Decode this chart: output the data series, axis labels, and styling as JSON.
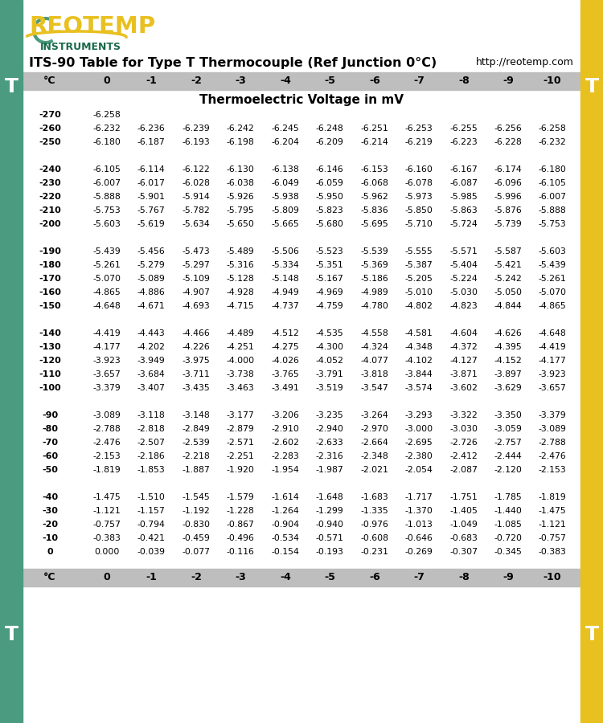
{
  "title": "ITS-90 Table for Type T Thermocouple (Ref Junction 0°C)",
  "url": "http://reotemp.com",
  "subtitle": "Thermoelectric Voltage in mV",
  "header": [
    "°C",
    "0",
    "-1",
    "-2",
    "-3",
    "-4",
    "-5",
    "-6",
    "-7",
    "-8",
    "-9",
    "-10"
  ],
  "rows": [
    [
      "-270",
      "-6.258",
      "",
      "",
      "",
      "",
      "",
      "",
      "",
      "",
      "",
      ""
    ],
    [
      "-260",
      "-6.232",
      "-6.236",
      "-6.239",
      "-6.242",
      "-6.245",
      "-6.248",
      "-6.251",
      "-6.253",
      "-6.255",
      "-6.256",
      "-6.258"
    ],
    [
      "-250",
      "-6.180",
      "-6.187",
      "-6.193",
      "-6.198",
      "-6.204",
      "-6.209",
      "-6.214",
      "-6.219",
      "-6.223",
      "-6.228",
      "-6.232"
    ],
    [
      "",
      "",
      "",
      "",
      "",
      "",
      "",
      "",
      "",
      "",
      "",
      ""
    ],
    [
      "-240",
      "-6.105",
      "-6.114",
      "-6.122",
      "-6.130",
      "-6.138",
      "-6.146",
      "-6.153",
      "-6.160",
      "-6.167",
      "-6.174",
      "-6.180"
    ],
    [
      "-230",
      "-6.007",
      "-6.017",
      "-6.028",
      "-6.038",
      "-6.049",
      "-6.059",
      "-6.068",
      "-6.078",
      "-6.087",
      "-6.096",
      "-6.105"
    ],
    [
      "-220",
      "-5.888",
      "-5.901",
      "-5.914",
      "-5.926",
      "-5.938",
      "-5.950",
      "-5.962",
      "-5.973",
      "-5.985",
      "-5.996",
      "-6.007"
    ],
    [
      "-210",
      "-5.753",
      "-5.767",
      "-5.782",
      "-5.795",
      "-5.809",
      "-5.823",
      "-5.836",
      "-5.850",
      "-5.863",
      "-5.876",
      "-5.888"
    ],
    [
      "-200",
      "-5.603",
      "-5.619",
      "-5.634",
      "-5.650",
      "-5.665",
      "-5.680",
      "-5.695",
      "-5.710",
      "-5.724",
      "-5.739",
      "-5.753"
    ],
    [
      "",
      "",
      "",
      "",
      "",
      "",
      "",
      "",
      "",
      "",
      "",
      ""
    ],
    [
      "-190",
      "-5.439",
      "-5.456",
      "-5.473",
      "-5.489",
      "-5.506",
      "-5.523",
      "-5.539",
      "-5.555",
      "-5.571",
      "-5.587",
      "-5.603"
    ],
    [
      "-180",
      "-5.261",
      "-5.279",
      "-5.297",
      "-5.316",
      "-5.334",
      "-5.351",
      "-5.369",
      "-5.387",
      "-5.404",
      "-5.421",
      "-5.439"
    ],
    [
      "-170",
      "-5.070",
      "-5.089",
      "-5.109",
      "-5.128",
      "-5.148",
      "-5.167",
      "-5.186",
      "-5.205",
      "-5.224",
      "-5.242",
      "-5.261"
    ],
    [
      "-160",
      "-4.865",
      "-4.886",
      "-4.907",
      "-4.928",
      "-4.949",
      "-4.969",
      "-4.989",
      "-5.010",
      "-5.030",
      "-5.050",
      "-5.070"
    ],
    [
      "-150",
      "-4.648",
      "-4.671",
      "-4.693",
      "-4.715",
      "-4.737",
      "-4.759",
      "-4.780",
      "-4.802",
      "-4.823",
      "-4.844",
      "-4.865"
    ],
    [
      "",
      "",
      "",
      "",
      "",
      "",
      "",
      "",
      "",
      "",
      "",
      ""
    ],
    [
      "-140",
      "-4.419",
      "-4.443",
      "-4.466",
      "-4.489",
      "-4.512",
      "-4.535",
      "-4.558",
      "-4.581",
      "-4.604",
      "-4.626",
      "-4.648"
    ],
    [
      "-130",
      "-4.177",
      "-4.202",
      "-4.226",
      "-4.251",
      "-4.275",
      "-4.300",
      "-4.324",
      "-4.348",
      "-4.372",
      "-4.395",
      "-4.419"
    ],
    [
      "-120",
      "-3.923",
      "-3.949",
      "-3.975",
      "-4.000",
      "-4.026",
      "-4.052",
      "-4.077",
      "-4.102",
      "-4.127",
      "-4.152",
      "-4.177"
    ],
    [
      "-110",
      "-3.657",
      "-3.684",
      "-3.711",
      "-3.738",
      "-3.765",
      "-3.791",
      "-3.818",
      "-3.844",
      "-3.871",
      "-3.897",
      "-3.923"
    ],
    [
      "-100",
      "-3.379",
      "-3.407",
      "-3.435",
      "-3.463",
      "-3.491",
      "-3.519",
      "-3.547",
      "-3.574",
      "-3.602",
      "-3.629",
      "-3.657"
    ],
    [
      "",
      "",
      "",
      "",
      "",
      "",
      "",
      "",
      "",
      "",
      "",
      ""
    ],
    [
      "-90",
      "-3.089",
      "-3.118",
      "-3.148",
      "-3.177",
      "-3.206",
      "-3.235",
      "-3.264",
      "-3.293",
      "-3.322",
      "-3.350",
      "-3.379"
    ],
    [
      "-80",
      "-2.788",
      "-2.818",
      "-2.849",
      "-2.879",
      "-2.910",
      "-2.940",
      "-2.970",
      "-3.000",
      "-3.030",
      "-3.059",
      "-3.089"
    ],
    [
      "-70",
      "-2.476",
      "-2.507",
      "-2.539",
      "-2.571",
      "-2.602",
      "-2.633",
      "-2.664",
      "-2.695",
      "-2.726",
      "-2.757",
      "-2.788"
    ],
    [
      "-60",
      "-2.153",
      "-2.186",
      "-2.218",
      "-2.251",
      "-2.283",
      "-2.316",
      "-2.348",
      "-2.380",
      "-2.412",
      "-2.444",
      "-2.476"
    ],
    [
      "-50",
      "-1.819",
      "-1.853",
      "-1.887",
      "-1.920",
      "-1.954",
      "-1.987",
      "-2.021",
      "-2.054",
      "-2.087",
      "-2.120",
      "-2.153"
    ],
    [
      "",
      "",
      "",
      "",
      "",
      "",
      "",
      "",
      "",
      "",
      "",
      ""
    ],
    [
      "-40",
      "-1.475",
      "-1.510",
      "-1.545",
      "-1.579",
      "-1.614",
      "-1.648",
      "-1.683",
      "-1.717",
      "-1.751",
      "-1.785",
      "-1.819"
    ],
    [
      "-30",
      "-1.121",
      "-1.157",
      "-1.192",
      "-1.228",
      "-1.264",
      "-1.299",
      "-1.335",
      "-1.370",
      "-1.405",
      "-1.440",
      "-1.475"
    ],
    [
      "-20",
      "-0.757",
      "-0.794",
      "-0.830",
      "-0.867",
      "-0.904",
      "-0.940",
      "-0.976",
      "-1.013",
      "-1.049",
      "-1.085",
      "-1.121"
    ],
    [
      "-10",
      "-0.383",
      "-0.421",
      "-0.459",
      "-0.496",
      "-0.534",
      "-0.571",
      "-0.608",
      "-0.646",
      "-0.683",
      "-0.720",
      "-0.757"
    ],
    [
      "0",
      "0.000",
      "-0.039",
      "-0.077",
      "-0.116",
      "-0.154",
      "-0.193",
      "-0.231",
      "-0.269",
      "-0.307",
      "-0.345",
      "-0.383"
    ]
  ],
  "bg_color": "#ffffff",
  "header_bg": "#bebebe",
  "left_bar_color": "#4a9b7f",
  "right_bar_color": "#e8c020",
  "reotemp_color": "#e8c020",
  "instruments_color": "#1a6a4a",
  "title_fontsize": 11.5,
  "data_fontsize": 8.0,
  "header_fontsize": 9.0
}
